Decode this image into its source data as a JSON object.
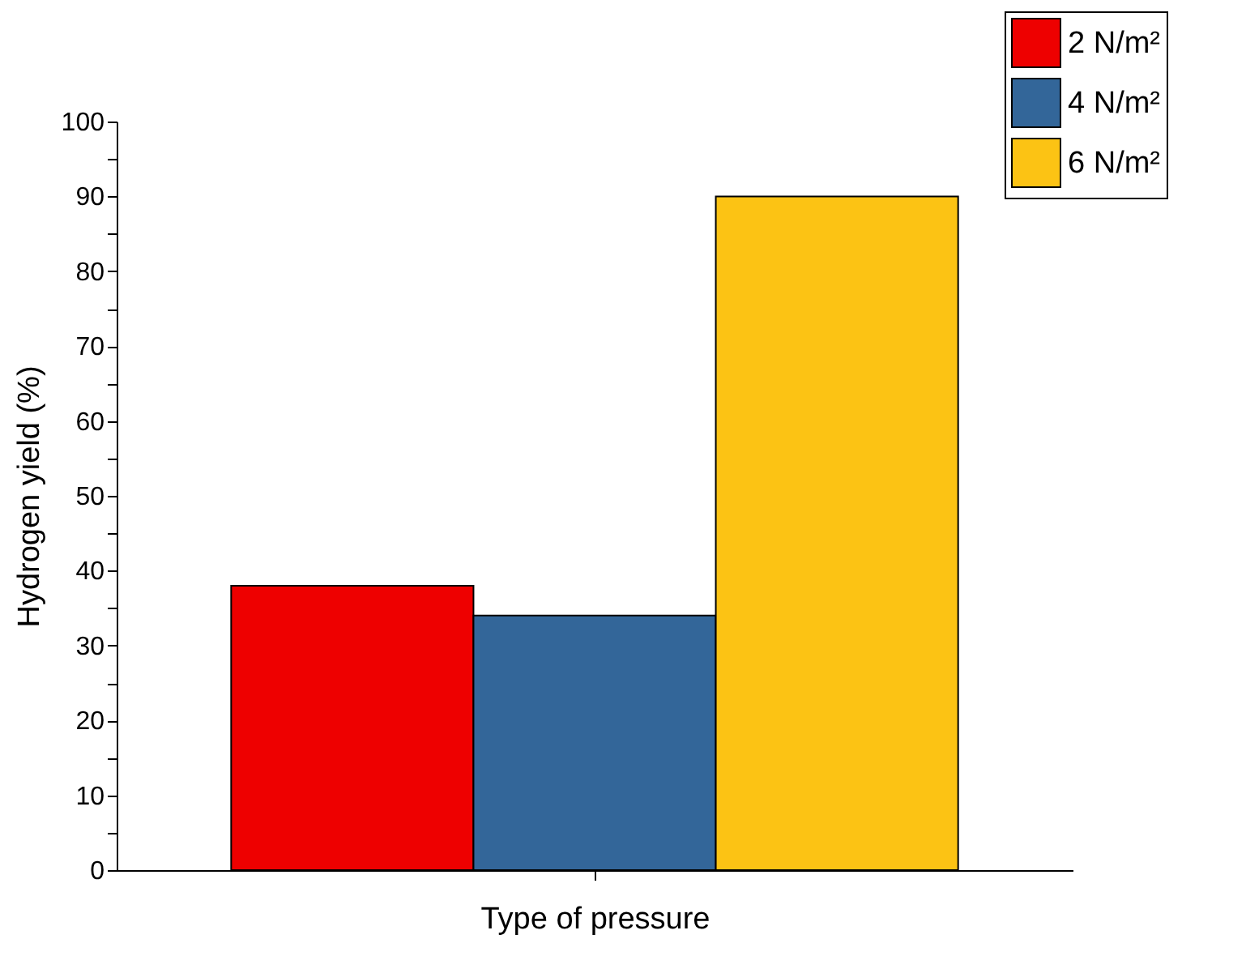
{
  "chart_data": {
    "type": "bar",
    "xlabel": "Type of pressure",
    "ylabel": "Hydrogen yield (%)",
    "categories": [
      null
    ],
    "series": [
      {
        "name": "2 N/m²",
        "color": "#ee0000",
        "values": [
          38
        ]
      },
      {
        "name": "4 N/m²",
        "color": "#336699",
        "values": [
          34
        ]
      },
      {
        "name": "6 N/m²",
        "color": "#fcc314",
        "values": [
          90
        ]
      }
    ],
    "ylim": [
      0,
      100
    ],
    "yticks": [
      0,
      {
        "value": 5,
        "label": null
      },
      10,
      {
        "value": 15,
        "label": null
      },
      20,
      {
        "value": 25,
        "label": null
      },
      30,
      {
        "value": 35,
        "label": null
      },
      40,
      {
        "value": 45,
        "label": null
      },
      50,
      {
        "value": 55,
        "label": null
      },
      60,
      {
        "value": 65,
        "label": null
      },
      70,
      {
        "value": 75,
        "label": null
      },
      80,
      {
        "value": 85,
        "label": null
      },
      90,
      {
        "value": 95,
        "label": null
      },
      100
    ],
    "tick_labels": "y",
    "grid": false,
    "legend": "top right"
  }
}
